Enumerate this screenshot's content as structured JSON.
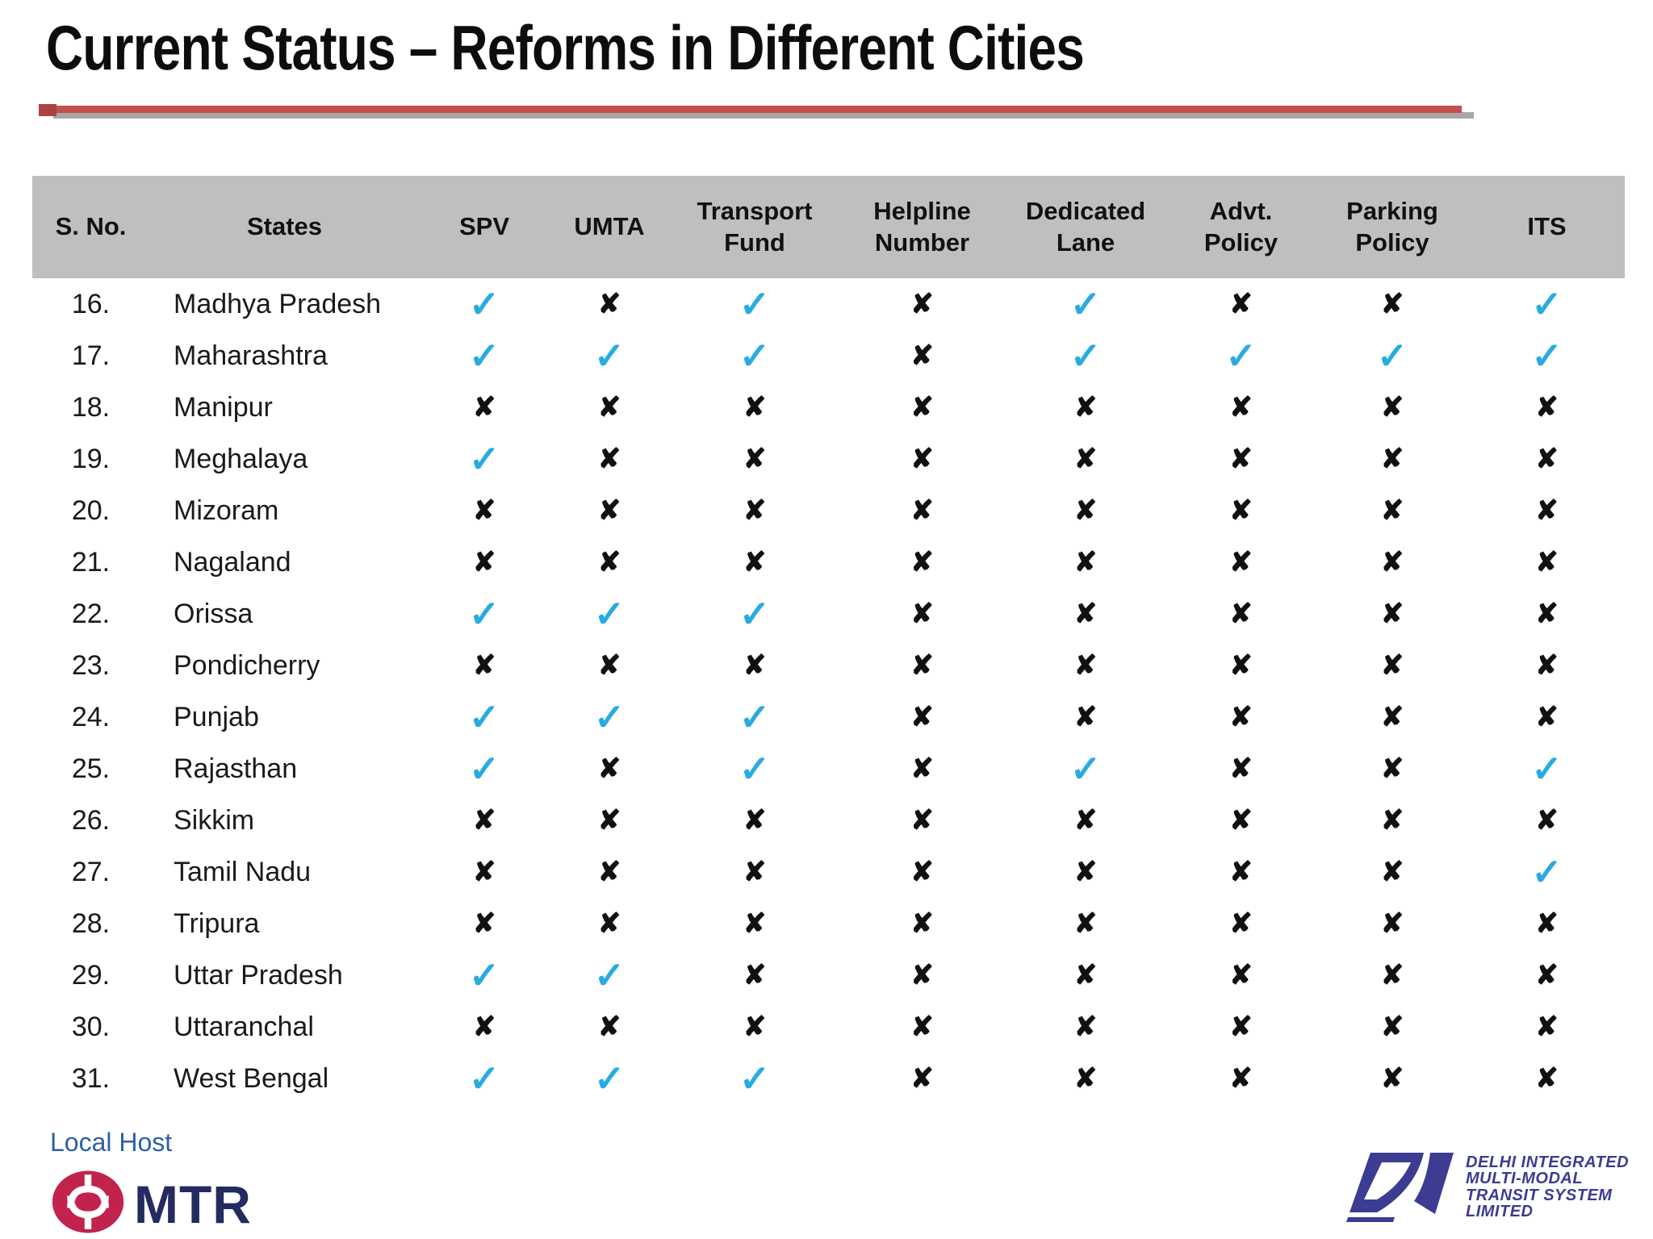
{
  "slide": {
    "title": "Current Status – Reforms in Different Cities"
  },
  "table": {
    "columns": [
      "S. No.",
      "States",
      "SPV",
      "UMTA",
      "Transport\nFund",
      "Helpline\nNumber",
      "Dedicated\nLane",
      "Advt.\nPolicy",
      "Parking\nPolicy",
      "ITS"
    ],
    "check_glyph": "✓",
    "cross_glyph": "✘",
    "rows": [
      {
        "no": "16.",
        "state": "Madhya Pradesh",
        "marks": [
          1,
          0,
          1,
          0,
          1,
          0,
          0,
          1
        ]
      },
      {
        "no": "17.",
        "state": "Maharashtra",
        "marks": [
          1,
          1,
          1,
          0,
          1,
          1,
          1,
          1
        ]
      },
      {
        "no": "18.",
        "state": "Manipur",
        "marks": [
          0,
          0,
          0,
          0,
          0,
          0,
          0,
          0
        ]
      },
      {
        "no": "19.",
        "state": "Meghalaya",
        "marks": [
          1,
          0,
          0,
          0,
          0,
          0,
          0,
          0
        ]
      },
      {
        "no": "20.",
        "state": "Mizoram",
        "marks": [
          0,
          0,
          0,
          0,
          0,
          0,
          0,
          0
        ]
      },
      {
        "no": "21.",
        "state": "Nagaland",
        "marks": [
          0,
          0,
          0,
          0,
          0,
          0,
          0,
          0
        ]
      },
      {
        "no": "22.",
        "state": "Orissa",
        "marks": [
          1,
          1,
          1,
          0,
          0,
          0,
          0,
          0
        ]
      },
      {
        "no": "23.",
        "state": "Pondicherry",
        "marks": [
          0,
          0,
          0,
          0,
          0,
          0,
          0,
          0
        ]
      },
      {
        "no": "24.",
        "state": "Punjab",
        "marks": [
          1,
          1,
          1,
          0,
          0,
          0,
          0,
          0
        ]
      },
      {
        "no": "25.",
        "state": "Rajasthan",
        "marks": [
          1,
          0,
          1,
          0,
          1,
          0,
          0,
          1
        ]
      },
      {
        "no": "26.",
        "state": "Sikkim",
        "marks": [
          0,
          0,
          0,
          0,
          0,
          0,
          0,
          0
        ]
      },
      {
        "no": "27.",
        "state": "Tamil Nadu",
        "marks": [
          0,
          0,
          0,
          0,
          0,
          0,
          0,
          1
        ]
      },
      {
        "no": "28.",
        "state": "Tripura",
        "marks": [
          0,
          0,
          0,
          0,
          0,
          0,
          0,
          0
        ]
      },
      {
        "no": "29.",
        "state": "Uttar Pradesh",
        "marks": [
          1,
          1,
          0,
          0,
          0,
          0,
          0,
          0
        ]
      },
      {
        "no": "30.",
        "state": "Uttaranchal",
        "marks": [
          0,
          0,
          0,
          0,
          0,
          0,
          0,
          0
        ]
      },
      {
        "no": "31.",
        "state": "West Bengal",
        "marks": [
          1,
          1,
          1,
          0,
          0,
          0,
          0,
          0
        ]
      }
    ]
  },
  "footer": {
    "local_host_label": "Local Host",
    "mtr_logo_text": "MTR",
    "dimts_lines": [
      "DELHI INTEGRATED",
      "MULTI-MODAL",
      "TRANSIT SYSTEM",
      "LIMITED"
    ]
  },
  "colors": {
    "check_blue": "#29ABE2",
    "cross_black": "#111111",
    "header_band_gray": "#BFBFBF",
    "title_rule_red": "#C0504D",
    "title_rule_shadow": "#A8A8A8",
    "local_host_blue": "#2E5FA8",
    "mtr_red": "#C2234D",
    "mtr_navy": "#232B60",
    "dimts_blue": "#3B3C92"
  }
}
